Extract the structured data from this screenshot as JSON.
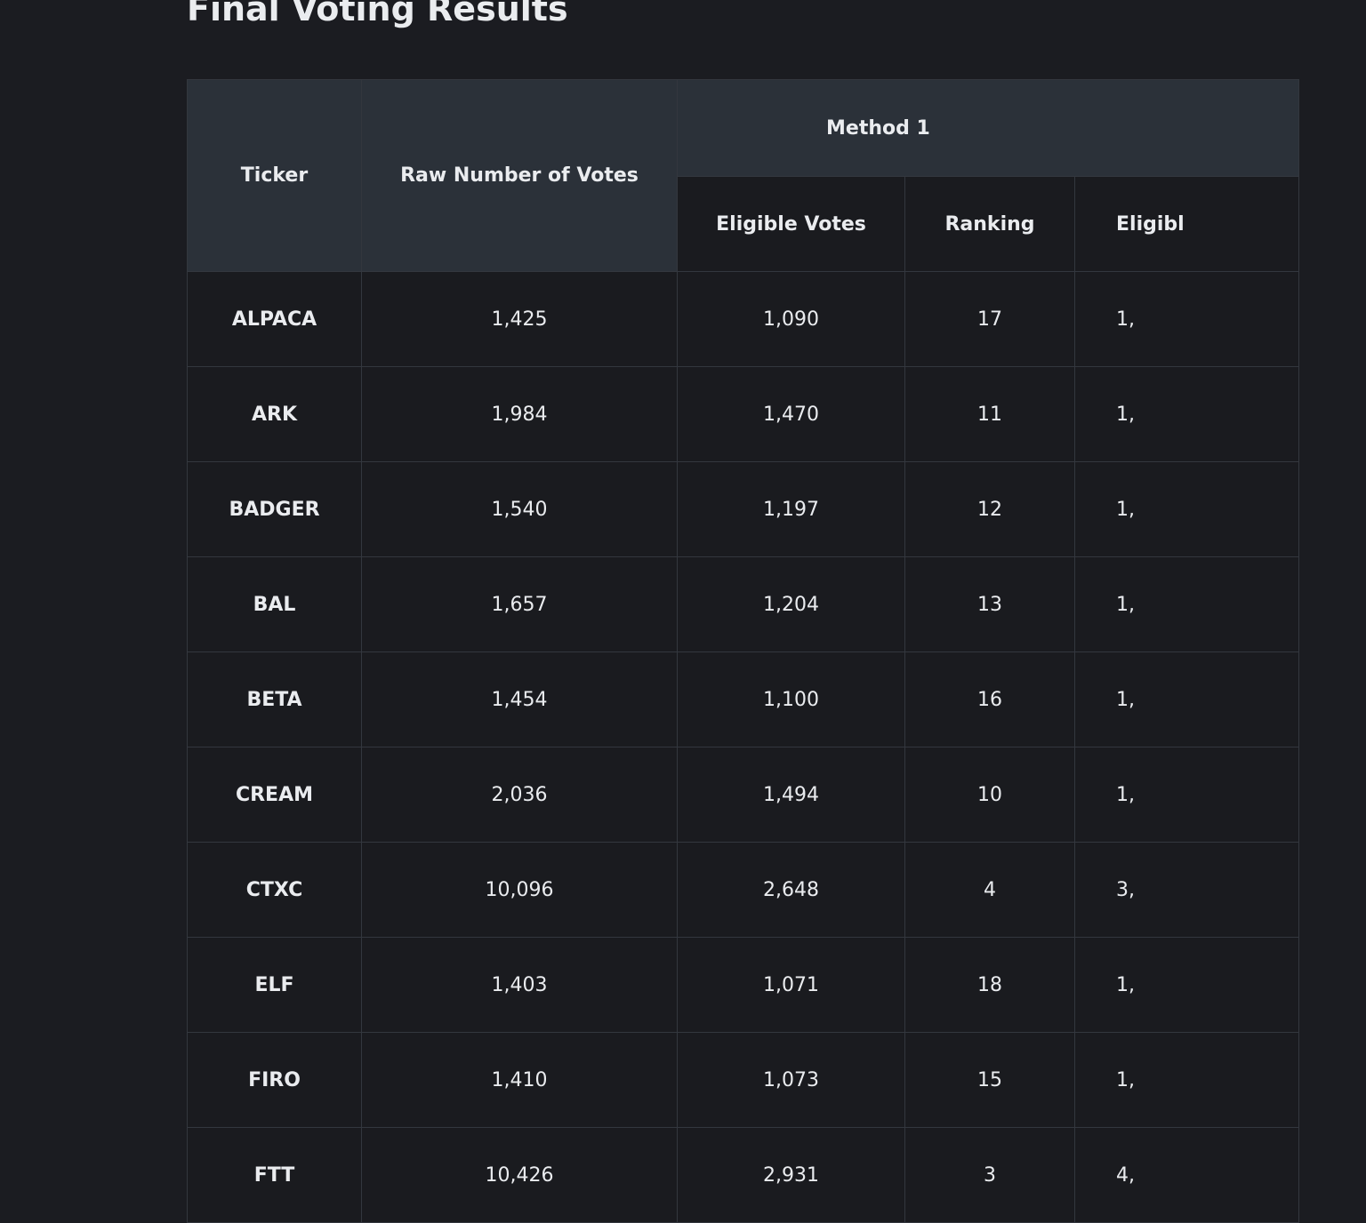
{
  "title": "Final Voting Results",
  "table": {
    "headers": {
      "ticker": "Ticker",
      "raw_votes": "Raw Number of Votes",
      "method1": "Method 1",
      "eligible_votes": "Eligible Votes",
      "ranking": "Ranking",
      "eligible_clipped": "Eligibl"
    },
    "rows": [
      [
        "ALPACA",
        "1,425",
        "1,090",
        "17",
        "1,"
      ],
      [
        "ARK",
        "1,984",
        "1,470",
        "11",
        "1,"
      ],
      [
        "BADGER",
        "1,540",
        "1,197",
        "12",
        "1,"
      ],
      [
        "BAL",
        "1,657",
        "1,204",
        "13",
        "1,"
      ],
      [
        "BETA",
        "1,454",
        "1,100",
        "16",
        "1,"
      ],
      [
        "CREAM",
        "2,036",
        "1,494",
        "10",
        "1,"
      ],
      [
        "CTXC",
        "10,096",
        "2,648",
        "4",
        "3,"
      ],
      [
        "ELF",
        "1,403",
        "1,071",
        "18",
        "1,"
      ],
      [
        "FIRO",
        "1,410",
        "1,073",
        "15",
        "1,"
      ],
      [
        "FTT",
        "10,426",
        "2,931",
        "3",
        "4,"
      ]
    ]
  }
}
